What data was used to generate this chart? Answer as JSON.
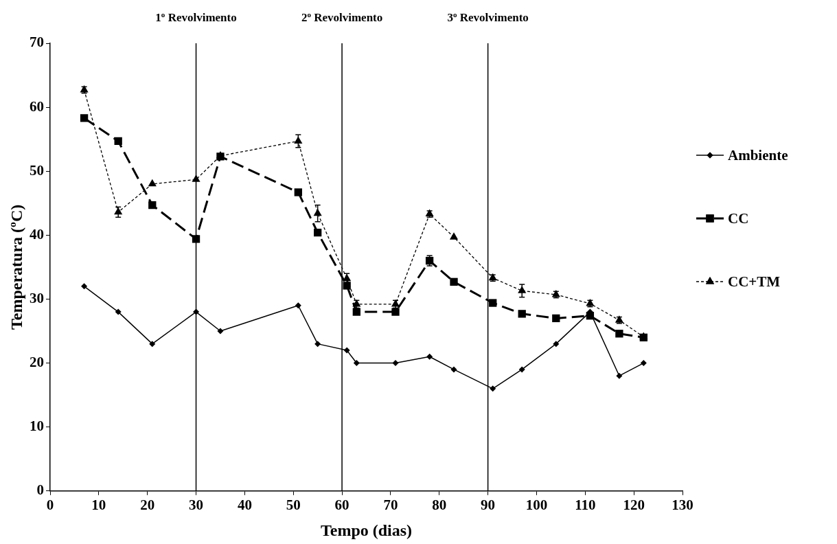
{
  "chart_data": {
    "type": "line",
    "xlabel": "Tempo (dias)",
    "ylabel": "Temperatura ($^{o}$C)",
    "xlim": [
      0,
      130
    ],
    "xticks": [
      0,
      10,
      20,
      30,
      40,
      50,
      60,
      70,
      80,
      90,
      100,
      110,
      120,
      130
    ],
    "ylim": [
      0,
      70
    ],
    "yticks": [
      0,
      10,
      20,
      30,
      40,
      50,
      60,
      70
    ],
    "grid": false,
    "legend": "right",
    "x": [
      7,
      14,
      21,
      30,
      35,
      51,
      55,
      61,
      63,
      71,
      78,
      83,
      91,
      97,
      104,
      111,
      117,
      122
    ],
    "series": [
      {
        "name": "Ambiente",
        "color": "#000000",
        "marker": "diamond",
        "line_style": "solid",
        "values": [
          32,
          28,
          23,
          28,
          25,
          29,
          23,
          22,
          20,
          20,
          21,
          19,
          16,
          19,
          23,
          28,
          18,
          20
        ]
      },
      {
        "name": "CC",
        "color": "#000000",
        "marker": "square",
        "line_style": "dashed",
        "values": [
          58.3,
          54.7,
          44.7,
          39.4,
          52.3,
          46.7,
          40.4,
          32.1,
          28,
          28,
          36,
          32.7,
          29.4,
          27.7,
          27,
          27.4,
          24.6,
          24
        ],
        "errors": [
          null,
          null,
          null,
          null,
          null,
          null,
          null,
          null,
          null,
          null,
          0.8,
          null,
          null,
          null,
          null,
          null,
          null,
          null
        ]
      },
      {
        "name": "CC+TM",
        "color": "#000000",
        "marker": "triangle",
        "line_style": "dotted",
        "values": [
          62.7,
          43.6,
          48,
          48.7,
          52.4,
          54.7,
          43.4,
          33.2,
          29.2,
          29.2,
          43.3,
          39.7,
          33.3,
          31.3,
          30.7,
          29.3,
          26.7,
          24.1
        ],
        "errors": [
          0.5,
          0.8,
          null,
          null,
          null,
          1,
          1.3,
          0.8,
          0.6,
          0.6,
          0.5,
          null,
          0.5,
          1,
          0.5,
          0.5,
          0.5,
          null
        ]
      }
    ],
    "ref_lines": [
      {
        "axis": "x",
        "value": 30,
        "label": "1$^{o}$ Revolvimento"
      },
      {
        "axis": "x",
        "value": 60,
        "label": "2$^{o}$ Revolvimento"
      },
      {
        "axis": "x",
        "value": 90,
        "label": "3$^{o}$ Revolvimento"
      }
    ]
  }
}
